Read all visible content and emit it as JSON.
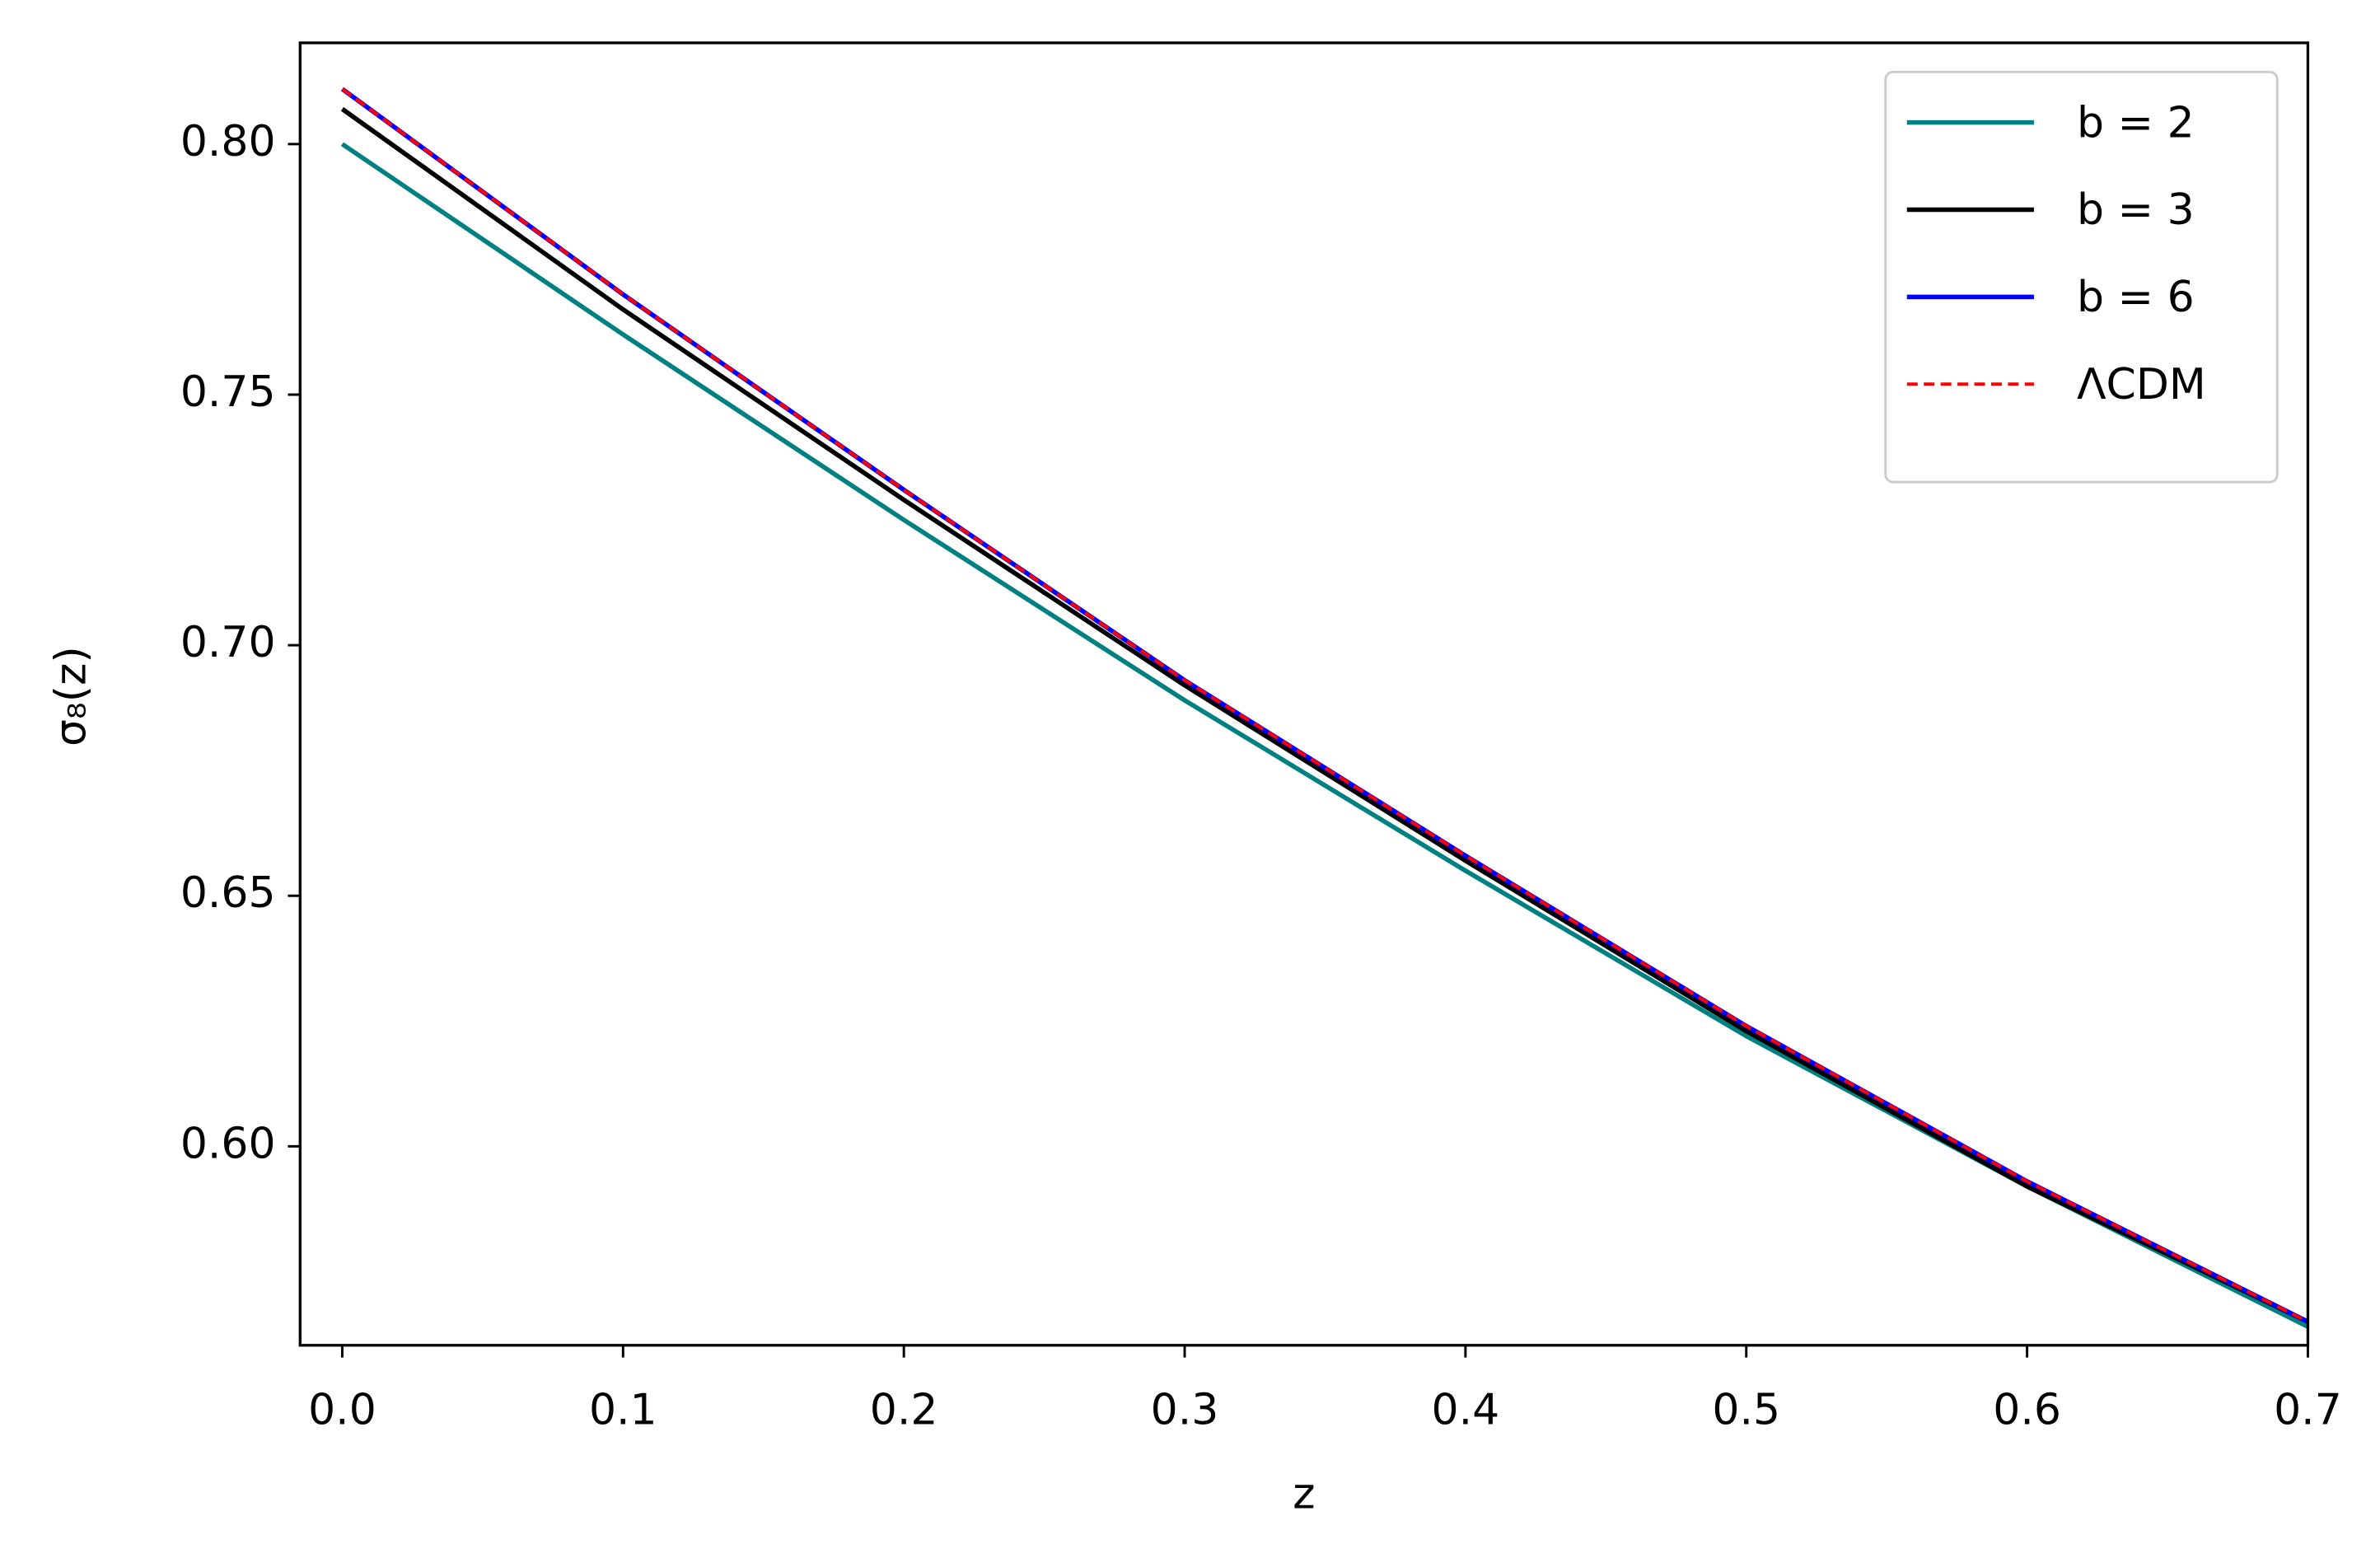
{
  "chart_data": {
    "type": "line",
    "x_label": "z",
    "y_label": "σ₈(z)",
    "x": [
      0,
      0.1,
      0.2,
      0.3,
      0.4,
      0.5,
      0.6,
      0.7
    ],
    "series": [
      {
        "name": "b = 2",
        "color": "#008080",
        "dash": false,
        "values": [
          0.8,
          0.762,
          0.725,
          0.689,
          0.655,
          0.622,
          0.592,
          0.564
        ]
      },
      {
        "name": "b = 3",
        "color": "#000000",
        "dash": false,
        "values": [
          0.807,
          0.767,
          0.729,
          0.692,
          0.657,
          0.623,
          0.592,
          0.565
        ]
      },
      {
        "name": "b = 6",
        "color": "#0000ff",
        "dash": false,
        "values": [
          0.811,
          0.77,
          0.731,
          0.693,
          0.658,
          0.624,
          0.593,
          0.565
        ]
      },
      {
        "name": "ΛCDM",
        "color": "#ff0000",
        "dash": true,
        "values": [
          0.811,
          0.77,
          0.731,
          0.693,
          0.658,
          0.624,
          0.593,
          0.565
        ]
      }
    ],
    "xlim": [
      -0.015,
      0.7
    ],
    "ylim": [
      0.5603,
      0.8202
    ],
    "xticks": [
      {
        "value": 0,
        "label": "0.0"
      },
      0.1,
      0.2,
      0.3,
      0.4,
      0.5,
      0.6,
      0.7
    ],
    "yticks": [
      {
        "value": 0.6,
        "label": "0.60"
      },
      0.65,
      {
        "value": 0.7,
        "label": "0.70"
      },
      0.75,
      {
        "value": 0.8,
        "label": "0.80"
      }
    ],
    "grid": false,
    "legend": "upper right"
  }
}
